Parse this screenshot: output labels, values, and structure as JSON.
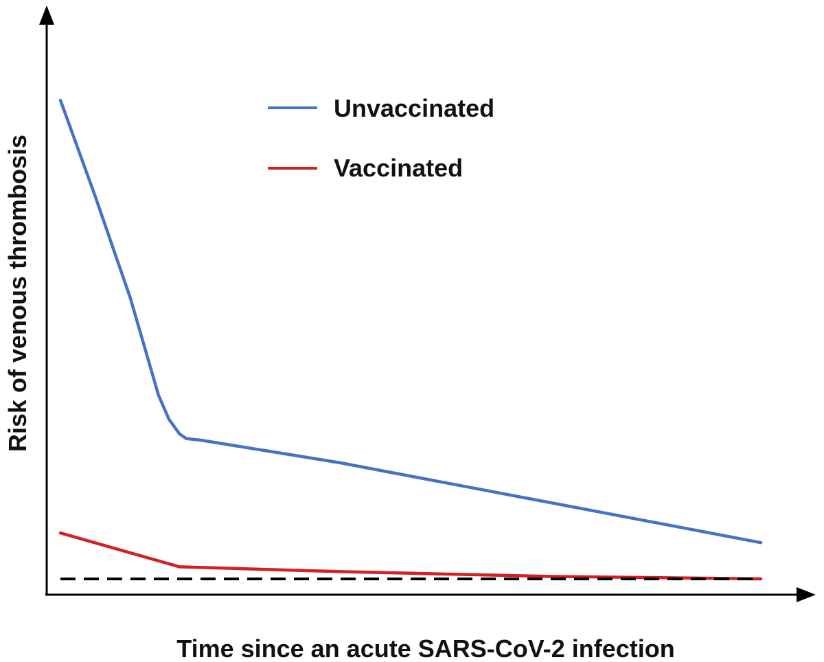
{
  "chart_data": {
    "type": "line",
    "title": "",
    "xlabel": "Time since an acute SARS-CoV-2 infection",
    "ylabel": "Risk of venous thrombosis",
    "xlim": [
      0,
      100
    ],
    "ylim": [
      0,
      100
    ],
    "grid": false,
    "legend_position": "top-center",
    "ticks": "none",
    "series": [
      {
        "name": "Unvaccinated",
        "color": "#4472C4",
        "style": "solid",
        "x": [
          0,
          5,
          10,
          14,
          15.5,
          17,
          18,
          20,
          40,
          60,
          80,
          100
        ],
        "y": [
          100,
          80,
          59,
          39,
          34,
          31,
          30,
          29.7,
          25,
          19.5,
          14,
          8.5
        ]
      },
      {
        "name": "Vaccinated",
        "color": "#D42020",
        "style": "solid",
        "x": [
          0,
          17,
          40,
          70,
          100
        ],
        "y": [
          10.5,
          3.5,
          2.5,
          1.5,
          1
        ]
      },
      {
        "name": "",
        "color": "#000000",
        "style": "dashed",
        "x": [
          0,
          100
        ],
        "y": [
          1,
          1
        ]
      }
    ]
  }
}
